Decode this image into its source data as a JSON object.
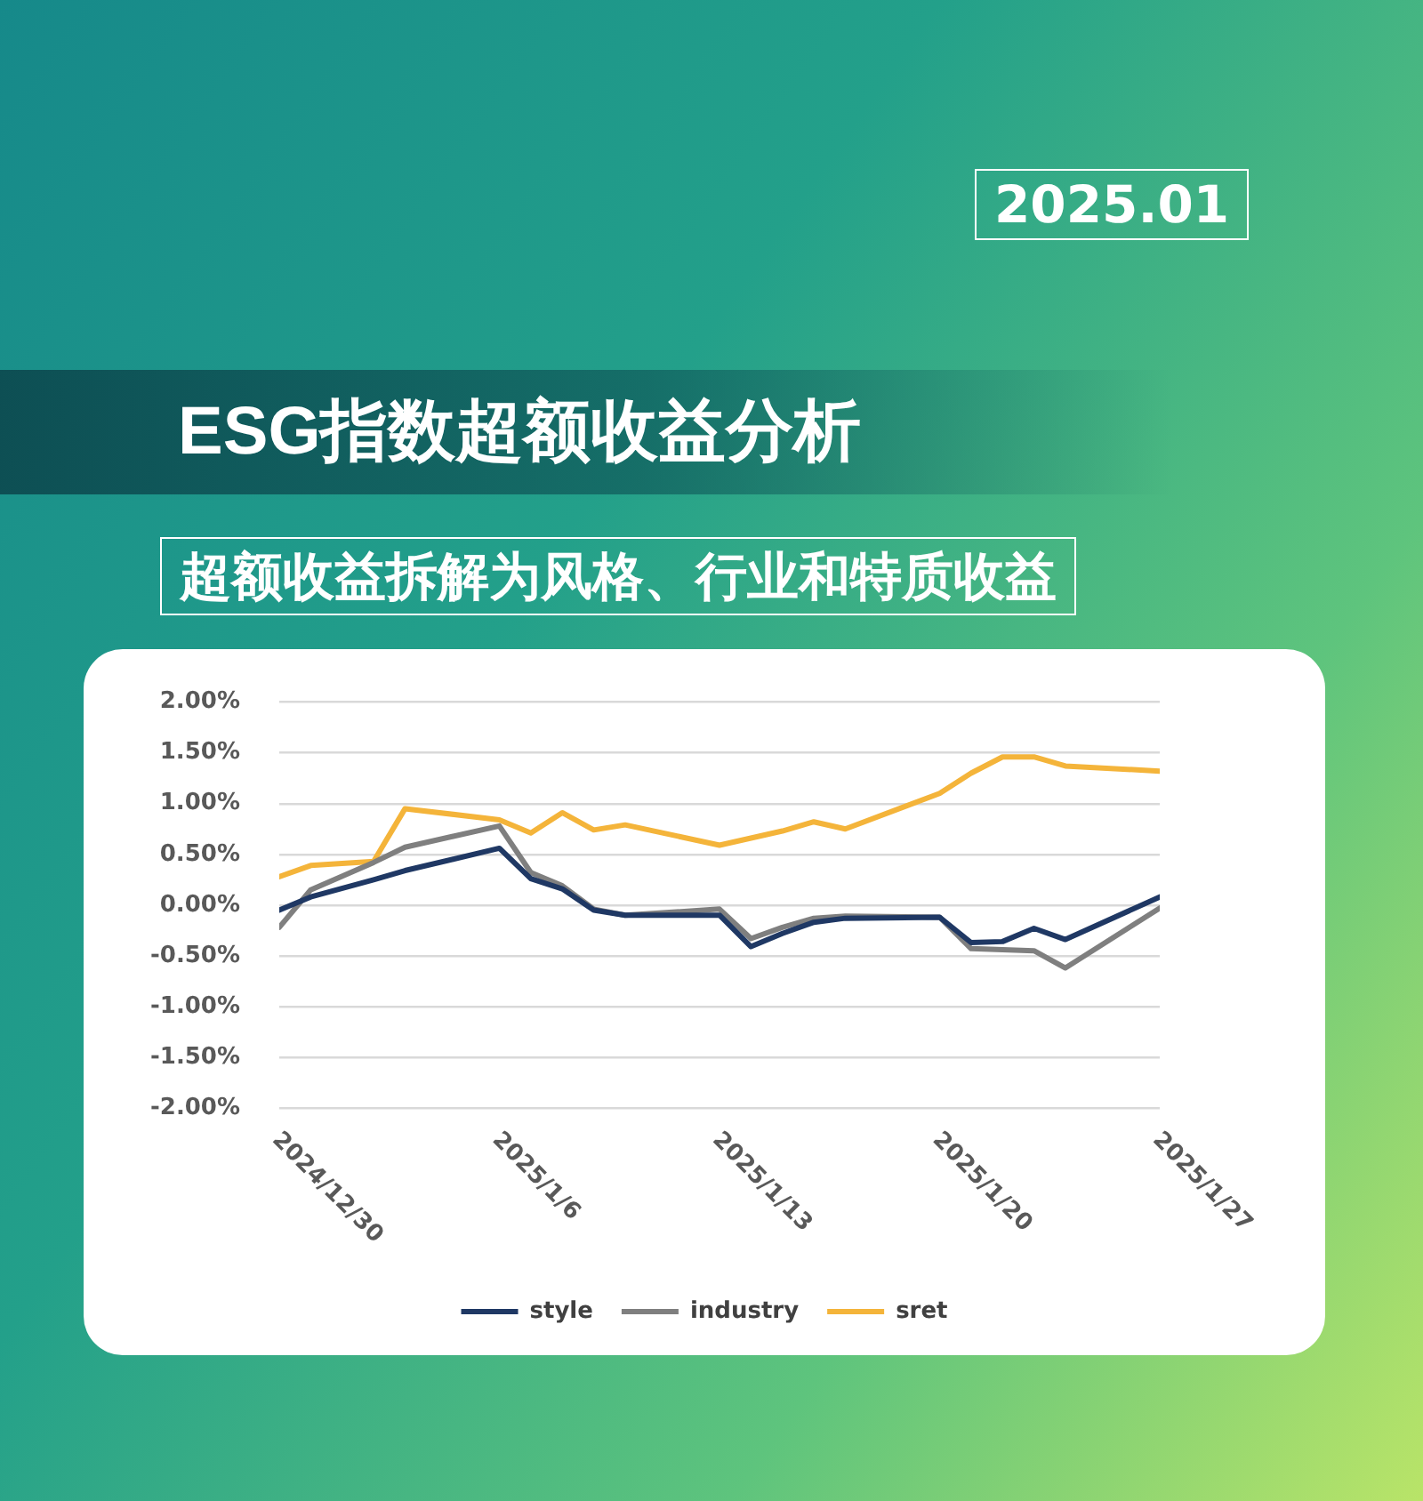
{
  "chart_data": {
    "type": "line",
    "title": "ESG指数超额收益分析",
    "subtitle": "超额收益拆解为风格、行业和特质收益",
    "annotations": [
      "2025.01"
    ],
    "x": [
      "2024-12-30",
      "2024-12-31",
      "2025-01-02",
      "2025-01-03",
      "2025-01-06",
      "2025-01-07",
      "2025-01-08",
      "2025-01-09",
      "2025-01-10",
      "2025-01-13",
      "2025-01-14",
      "2025-01-15",
      "2025-01-16",
      "2025-01-17",
      "2025-01-20",
      "2025-01-21",
      "2025-01-22",
      "2025-01-23",
      "2025-01-24",
      "2025-01-27"
    ],
    "series": [
      {
        "name": "style",
        "color": "#1f3864",
        "values": [
          -0.05,
          0.08,
          0.25,
          0.34,
          0.56,
          0.26,
          0.16,
          -0.05,
          -0.1,
          -0.1,
          -0.41,
          -0.28,
          -0.17,
          -0.13,
          -0.12,
          -0.37,
          -0.36,
          -0.23,
          -0.34,
          0.08
        ]
      },
      {
        "name": "industry",
        "color": "#7f7f7f",
        "values": [
          -0.22,
          0.15,
          0.42,
          0.57,
          0.78,
          0.32,
          0.19,
          -0.04,
          -0.1,
          -0.04,
          -0.33,
          -0.22,
          -0.13,
          -0.11,
          -0.12,
          -0.43,
          -0.44,
          -0.45,
          -0.62,
          -0.03
        ]
      },
      {
        "name": "sret",
        "color": "#f4b43a",
        "values": [
          0.28,
          0.39,
          0.43,
          0.95,
          0.84,
          0.71,
          0.91,
          0.74,
          0.79,
          0.59,
          0.66,
          0.73,
          0.82,
          0.75,
          1.1,
          1.3,
          1.46,
          1.46,
          1.37,
          1.32
        ]
      }
    ],
    "xlim": [
      "2024-12-30",
      "2025-01-27"
    ],
    "xticks": [
      {
        "value": "2024-12-30",
        "label": "2024/12/30"
      },
      {
        "value": "2025-01-06",
        "label": "2025/1/6"
      },
      {
        "value": "2025-01-13",
        "label": "2025/1/13"
      },
      {
        "value": "2025-01-20",
        "label": "2025/1/20"
      },
      {
        "value": "2025-01-27",
        "label": "2025/1/27"
      }
    ],
    "ylim": [
      -2,
      2
    ],
    "yticks": [
      {
        "value": -2,
        "label": "-2.00%"
      },
      {
        "value": -1.5,
        "label": "-1.50%"
      },
      {
        "value": -1,
        "label": "-1.00%"
      },
      {
        "value": -0.5,
        "label": "-0.50%"
      },
      {
        "value": 0,
        "label": "0.00%"
      },
      {
        "value": 0.5,
        "label": "0.50%"
      },
      {
        "value": 1,
        "label": "1.00%"
      },
      {
        "value": 1.5,
        "label": "1.50%"
      },
      {
        "value": 2,
        "label": "2.00%"
      }
    ],
    "grid": "y",
    "legend": "bottom"
  }
}
